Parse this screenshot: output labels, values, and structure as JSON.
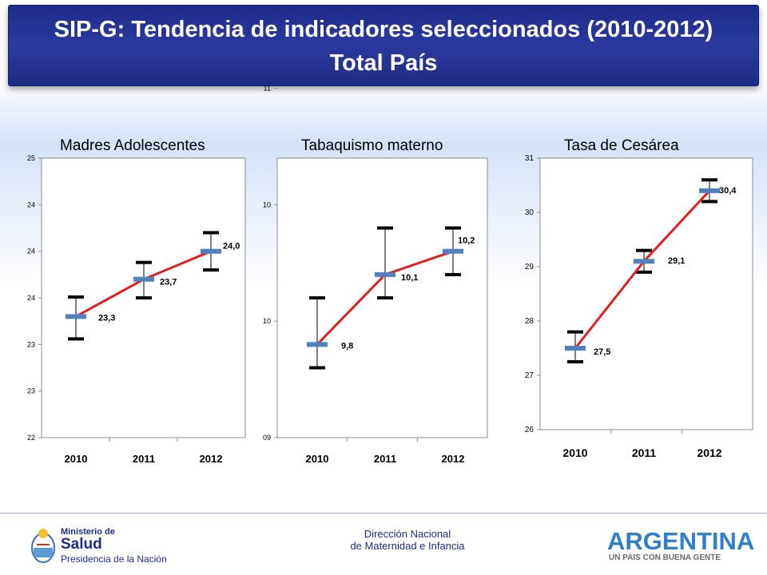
{
  "header": {
    "title_line1": "SIP-G: Tendencia de indicadores seleccionados (2010-2012)",
    "title_line2": "Total País"
  },
  "footer": {
    "ministry_small": "Ministerio de",
    "ministry_big": "Salud",
    "ministry_sub": "Presidencia de la Nación",
    "center_line1": "Dirección Nacional",
    "center_line2": "de Maternidad e Infancia",
    "country": "ARGENTINA",
    "country_slogan": "UN PAIS CON BUENA GENTE"
  },
  "colors": {
    "line": "#e02020",
    "marker": "#4f81bd",
    "errorbar": "#000000",
    "banner": "#1d2c8a"
  },
  "chart_data": [
    {
      "type": "line",
      "title": "Madres Adolescentes",
      "categories": [
        "2010",
        "2011",
        "2012"
      ],
      "values": [
        23.3,
        23.7,
        24.0
      ],
      "value_labels": [
        "23,3",
        "23,7",
        "24,0"
      ],
      "err_low": [
        23.06,
        23.5,
        23.8
      ],
      "err_high": [
        23.51,
        23.88,
        24.2
      ],
      "ylim": [
        22,
        25
      ],
      "yticks": [
        22,
        22.5,
        23,
        23.5,
        24,
        24.5,
        25
      ],
      "ytick_labels": [
        "22",
        "23",
        "23",
        "24",
        "24",
        "24",
        "25"
      ],
      "grid": false
    },
    {
      "type": "line",
      "title": "Tabaquismo materno",
      "categories": [
        "2010",
        "2011",
        "2012"
      ],
      "values": [
        9.8,
        10.1,
        10.2
      ],
      "value_labels": [
        "9,8",
        "10,1",
        "10,2"
      ],
      "err_low": [
        9.7,
        10.0,
        10.1
      ],
      "err_high": [
        10.0,
        10.3,
        10.3
      ],
      "ylim": [
        9.4,
        10.6
      ],
      "yticks": [
        9.4,
        9.9,
        10.4,
        10.9
      ],
      "ytick_labels": [
        "09",
        "10",
        "10",
        "11"
      ],
      "grid": false
    },
    {
      "type": "line",
      "title": "Tasa de Cesárea",
      "categories": [
        "2010",
        "2011",
        "2012"
      ],
      "values": [
        27.5,
        29.1,
        30.4
      ],
      "value_labels": [
        "27,5",
        "29,1",
        "30,4"
      ],
      "err_low": [
        27.25,
        28.9,
        30.2
      ],
      "err_high": [
        27.8,
        29.3,
        30.6
      ],
      "ylim": [
        26,
        31
      ],
      "yticks": [
        26,
        27,
        28,
        29,
        30,
        31
      ],
      "ytick_labels": [
        "26",
        "27",
        "28",
        "29",
        "30",
        "31"
      ],
      "grid": false
    }
  ]
}
